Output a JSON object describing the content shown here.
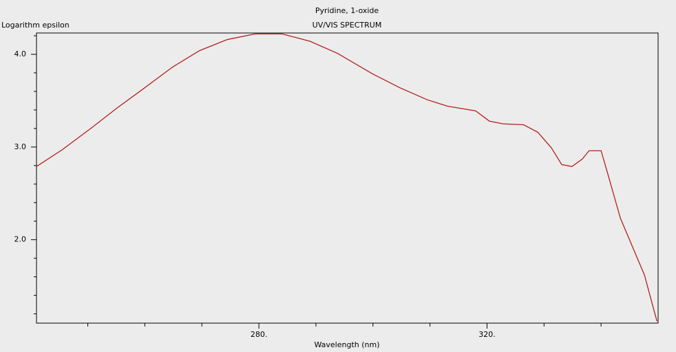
{
  "chart_data": {
    "type": "line",
    "title": "Pyridine, 1-oxide",
    "subtitle": "UV/VIS SPECTRUM",
    "ylabel": "Logarithm epsilon",
    "xlabel": "Wavelength (nm)",
    "xlim": [
      241,
      350
    ],
    "ylim": [
      1.1,
      4.23
    ],
    "xticks": [
      {
        "value": 280,
        "label": "280."
      },
      {
        "value": 320,
        "label": "320."
      }
    ],
    "xminorticks": [
      250,
      260,
      270,
      290,
      300,
      310,
      330,
      340
    ],
    "yticks": [
      {
        "value": 2,
        "label": "2.0"
      },
      {
        "value": 3,
        "label": "3.0"
      },
      {
        "value": 4,
        "label": "4.0"
      }
    ],
    "yminorticks": [
      1.2,
      1.4,
      1.6,
      1.8,
      2.2,
      2.4,
      2.6,
      2.8,
      3.2,
      3.4,
      3.6,
      3.8,
      4.2
    ],
    "series": [
      {
        "color": "#b0201c",
        "x": [
          241,
          245.5,
          250.3,
          255.1,
          260,
          264.8,
          269.6,
          274.5,
          279.3,
          284.1,
          289,
          293.8,
          299.9,
          304.7,
          309.5,
          313.1,
          318,
          320.4,
          322.8,
          326.4,
          328.9,
          331.3,
          333.1,
          334.9,
          336.7,
          337.9,
          340,
          340.9,
          343.4,
          347.6,
          349.8
        ],
        "values": [
          2.79,
          2.97,
          3.19,
          3.42,
          3.64,
          3.86,
          4.04,
          4.16,
          4.22,
          4.22,
          4.14,
          4.01,
          3.79,
          3.64,
          3.51,
          3.44,
          3.39,
          3.28,
          3.25,
          3.24,
          3.16,
          2.99,
          2.81,
          2.79,
          2.87,
          2.96,
          2.96,
          2.77,
          2.23,
          1.62,
          1.12
        ]
      }
    ]
  }
}
